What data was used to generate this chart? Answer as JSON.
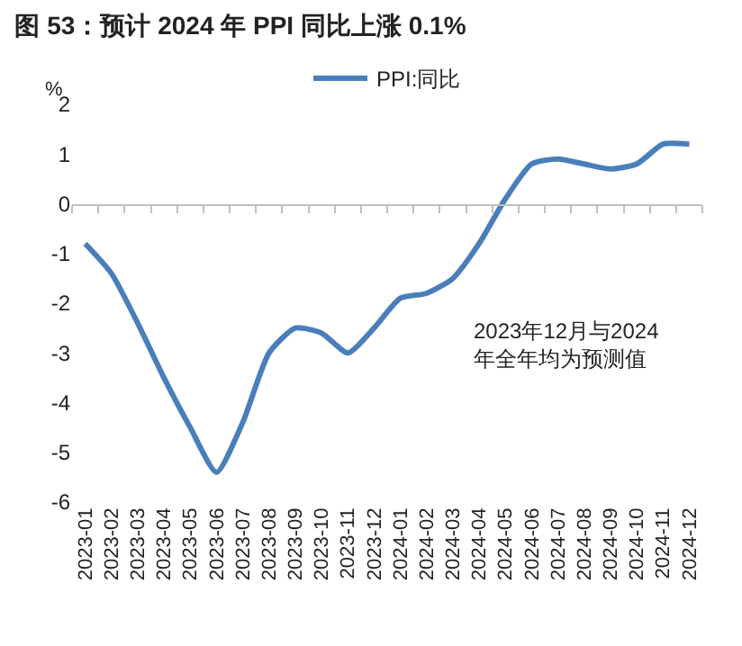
{
  "chart_data": {
    "type": "line",
    "title": "图 53：预计 2024 年 PPI 同比上涨 0.1%",
    "ylabel": "%",
    "categories": [
      "2023-01",
      "2023-02",
      "2023-03",
      "2023-04",
      "2023-05",
      "2023-06",
      "2023-07",
      "2023-08",
      "2023-09",
      "2023-10",
      "2023-11",
      "2023-12",
      "2024-01",
      "2024-02",
      "2024-03",
      "2024-04",
      "2024-05",
      "2024-06",
      "2024-07",
      "2024-08",
      "2024-09",
      "2024-10",
      "2024-11",
      "2024-12"
    ],
    "series": [
      {
        "name": "PPI:同比",
        "color": "#4a7ebb",
        "values": [
          -0.8,
          -1.4,
          -2.4,
          -3.5,
          -4.5,
          -5.4,
          -4.4,
          -3.0,
          -2.5,
          -2.6,
          -3.0,
          -2.5,
          -1.9,
          -1.8,
          -1.5,
          -0.8,
          0.1,
          0.8,
          0.9,
          0.8,
          0.7,
          0.8,
          1.2,
          1.2
        ]
      }
    ],
    "ylim": [
      -6,
      2
    ],
    "yticks": [
      -6,
      -5,
      -4,
      -3,
      -2,
      -1,
      0,
      1,
      2
    ],
    "legend": "top",
    "marker": "none",
    "line_style": "solid",
    "annotations": [
      "2023年12月与2024\n年全年均为预测值"
    ]
  }
}
